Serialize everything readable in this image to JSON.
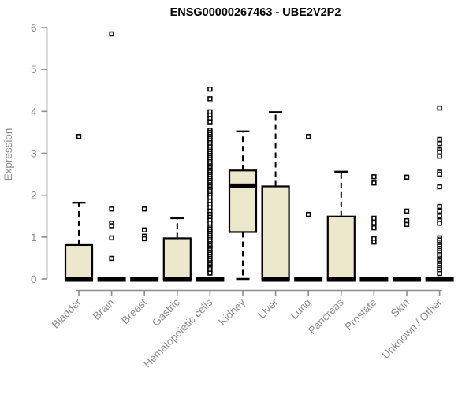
{
  "colors": {
    "background": "#ffffff",
    "box_fill": "#EDE8CC",
    "box_border": "#000000",
    "median": "#000000",
    "whisker": "#000000",
    "outlier_stroke": "#000000",
    "outlier_fill": "#ffffff",
    "axis": "#8c8c8c",
    "tick_label": "#8c8c8c",
    "title": "#000000"
  },
  "chart_data": {
    "type": "boxplot",
    "title": "ENSG00000267463 - UBE2V2P2",
    "xlabel": "",
    "ylabel": "Expression",
    "ylim": [
      0,
      6
    ],
    "yticks": [
      0,
      1,
      2,
      3,
      4,
      5,
      6
    ],
    "grid": false,
    "legend": "none",
    "x_tick_rotation_deg": 45,
    "categories": [
      "Bladder",
      "Brain",
      "Breast",
      "Gastric",
      "Hematopoietic cells",
      "Kidney",
      "Liver",
      "Lung",
      "Pancreas",
      "Prostate",
      "Skin",
      "Unknown / Other"
    ],
    "boxes": [
      {
        "category": "Bladder",
        "whisker_low": 0,
        "q1": 0,
        "median": 0,
        "q3": 0.81,
        "whisker_high": 1.82,
        "outliers": [
          3.4
        ]
      },
      {
        "category": "Brain",
        "whisker_low": 0,
        "q1": 0,
        "median": 0,
        "q3": 0,
        "whisker_high": 0,
        "outliers": [
          5.85,
          1.67,
          1.33,
          1.27,
          0.98,
          0.49
        ]
      },
      {
        "category": "Breast",
        "whisker_low": 0,
        "q1": 0,
        "median": 0,
        "q3": 0,
        "whisker_high": 0,
        "outliers": [
          1.67,
          1.17,
          1.02,
          0.96
        ]
      },
      {
        "category": "Gastric",
        "whisker_low": 0,
        "q1": 0,
        "median": 0,
        "q3": 0.97,
        "whisker_high": 1.45,
        "outliers": []
      },
      {
        "category": "Hematopoietic cells",
        "whisker_low": 0,
        "q1": 0,
        "median": 0,
        "q3": 0,
        "whisker_high": 0,
        "outliers": [
          4.53,
          4.3,
          3.99,
          3.91,
          3.83,
          3.75,
          3.55,
          3.5,
          3.45,
          3.4,
          3.35,
          3.3,
          3.25,
          3.2,
          3.15,
          3.1,
          3.05,
          3.0,
          2.95,
          2.9,
          2.85,
          2.8,
          2.75,
          2.7,
          2.65,
          2.6,
          2.55,
          2.5,
          2.45,
          2.4,
          2.35,
          2.3,
          2.25,
          2.2,
          2.15,
          2.1,
          2.05,
          2.0,
          1.95,
          1.86,
          1.78,
          1.7,
          1.62,
          1.54,
          1.47,
          1.4,
          1.33,
          1.24,
          1.19,
          1.14,
          1.09,
          1.04,
          0.99,
          0.94,
          0.89,
          0.84,
          0.79,
          0.74,
          0.69,
          0.64,
          0.59,
          0.54,
          0.49,
          0.44,
          0.39,
          0.34,
          0.29,
          0.24,
          0.19,
          0.14
        ]
      },
      {
        "category": "Kidney",
        "whisker_low": 0,
        "q1": 1.12,
        "median": 2.23,
        "q3": 2.59,
        "whisker_high": 3.52,
        "outliers": []
      },
      {
        "category": "Liver",
        "whisker_low": 0,
        "q1": 0,
        "median": 0,
        "q3": 2.21,
        "whisker_high": 3.98,
        "outliers": []
      },
      {
        "category": "Lung",
        "whisker_low": 0,
        "q1": 0,
        "median": 0,
        "q3": 0,
        "whisker_high": 0,
        "outliers": [
          3.4,
          1.54
        ]
      },
      {
        "category": "Pancreas",
        "whisker_low": 0,
        "q1": 0,
        "median": 0,
        "q3": 1.49,
        "whisker_high": 2.56,
        "outliers": []
      },
      {
        "category": "Prostate",
        "whisker_low": 0,
        "q1": 0,
        "median": 0,
        "q3": 0,
        "whisker_high": 0,
        "outliers": [
          2.44,
          2.29,
          1.45,
          1.34,
          1.22,
          0.96,
          0.88
        ]
      },
      {
        "category": "Skin",
        "whisker_low": 0,
        "q1": 0,
        "median": 0,
        "q3": 0,
        "whisker_high": 0,
        "outliers": [
          2.43,
          1.62,
          1.39,
          1.3
        ]
      },
      {
        "category": "Unknown / Other",
        "whisker_low": 0,
        "q1": 0,
        "median": 0,
        "q3": 0,
        "whisker_high": 0,
        "outliers": [
          4.08,
          3.33,
          3.23,
          3.08,
          3.03,
          2.93,
          2.55,
          2.5,
          2.2,
          1.73,
          1.62,
          1.5,
          1.39,
          1.33,
          0.98,
          0.93,
          0.88,
          0.83,
          0.78,
          0.73,
          0.68,
          0.63,
          0.58,
          0.53,
          0.48,
          0.43,
          0.38,
          0.33,
          0.28,
          0.23,
          0.18,
          0.13
        ]
      }
    ]
  }
}
